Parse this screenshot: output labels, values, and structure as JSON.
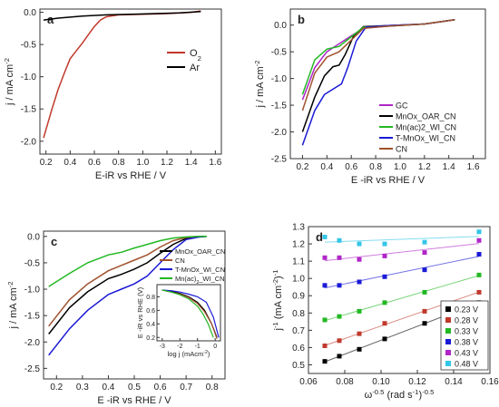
{
  "chart_data": [
    {
      "panel": "a",
      "type": "line",
      "xlabel": "E-iR vs RHE / V",
      "ylabel": "j / mA cm",
      "ylabel_sup": "-2",
      "xlim": [
        0.15,
        1.65
      ],
      "ylim": [
        -2.2,
        0.05
      ],
      "xticks": [
        "0.2",
        "0.4",
        "0.6",
        "0.8",
        "1.0",
        "1.2",
        "1.4",
        "1.6"
      ],
      "yticks": [
        "0.0",
        "-0.5",
        "-1.0",
        "-1.5",
        "-2.0"
      ],
      "legend": [
        {
          "label": "O",
          "sub": "2",
          "color": "#c0392b"
        },
        {
          "label": "Ar",
          "color": "#000000"
        }
      ],
      "series": [
        {
          "name": "O2",
          "color": "#c0392b",
          "x": [
            0.18,
            0.25,
            0.3,
            0.35,
            0.4,
            0.45,
            0.5,
            0.55,
            0.6,
            0.65,
            0.7,
            0.8,
            1.0,
            1.2,
            1.4,
            1.48
          ],
          "y": [
            -1.95,
            -1.5,
            -1.2,
            -0.95,
            -0.72,
            -0.6,
            -0.48,
            -0.35,
            -0.22,
            -0.12,
            -0.07,
            -0.04,
            -0.03,
            -0.02,
            0.0,
            0.02
          ]
        },
        {
          "name": "Ar",
          "color": "#000000",
          "x": [
            0.18,
            0.3,
            0.5,
            0.7,
            0.9,
            1.1,
            1.3,
            1.48
          ],
          "y": [
            -0.12,
            -0.09,
            -0.06,
            -0.04,
            -0.03,
            -0.02,
            -0.01,
            0.01
          ]
        }
      ]
    },
    {
      "panel": "b",
      "type": "line",
      "xlabel": "E -iR vs RHE / V",
      "ylabel": "j / mA cm",
      "ylabel_sup": "-2",
      "xlim": [
        0.1,
        1.7
      ],
      "ylim": [
        -2.5,
        0.3
      ],
      "xticks": [
        "0.2",
        "0.4",
        "0.6",
        "0.8",
        "1.0",
        "1.2",
        "1.4",
        "1.6"
      ],
      "yticks": [
        "0.0",
        "-0.5",
        "-1.0",
        "-1.5",
        "-2.0",
        "-2.5"
      ],
      "legend": [
        {
          "label": "GC",
          "color": "#b026c8"
        },
        {
          "label": "MnOx_OAR_CN",
          "color": "#000000"
        },
        {
          "label": "Mn(ac)2_WI_CN",
          "color": "#22b822"
        },
        {
          "label": "T-MnOx_WI_CN",
          "color": "#1a1ad6"
        },
        {
          "label": "CN",
          "color": "#a0522d"
        }
      ],
      "series": [
        {
          "name": "GC",
          "color": "#b026c8",
          "x": [
            0.2,
            0.3,
            0.4,
            0.5,
            0.6,
            0.7,
            0.9,
            1.2,
            1.45
          ],
          "y": [
            -1.4,
            -0.8,
            -0.5,
            -0.35,
            -0.2,
            -0.06,
            -0.02,
            0.02,
            0.1
          ]
        },
        {
          "name": "MnOx_OAR_CN",
          "color": "#000000",
          "x": [
            0.2,
            0.3,
            0.38,
            0.45,
            0.5,
            0.55,
            0.62,
            0.7,
            0.9,
            1.2,
            1.45
          ],
          "y": [
            -2.0,
            -1.35,
            -0.95,
            -0.78,
            -0.75,
            -0.55,
            -0.2,
            -0.03,
            -0.01,
            0.02,
            0.1
          ]
        },
        {
          "name": "Mn(ac)2_WI_CN",
          "color": "#22b822",
          "x": [
            0.2,
            0.3,
            0.4,
            0.5,
            0.6,
            0.7,
            0.9,
            1.2,
            1.45
          ],
          "y": [
            -1.3,
            -0.65,
            -0.45,
            -0.4,
            -0.22,
            -0.04,
            -0.02,
            0.02,
            0.1
          ]
        },
        {
          "name": "T-MnOx_WI_CN",
          "color": "#1a1ad6",
          "x": [
            0.2,
            0.3,
            0.38,
            0.45,
            0.52,
            0.57,
            0.64,
            0.72,
            0.9,
            1.2,
            1.45
          ],
          "y": [
            -2.25,
            -1.6,
            -1.3,
            -1.2,
            -1.1,
            -0.8,
            -0.3,
            -0.04,
            -0.01,
            0.02,
            0.1
          ]
        },
        {
          "name": "CN",
          "color": "#a0522d",
          "x": [
            0.2,
            0.3,
            0.4,
            0.5,
            0.6,
            0.7,
            0.9,
            1.2,
            1.45
          ],
          "y": [
            -1.6,
            -0.9,
            -0.6,
            -0.5,
            -0.28,
            -0.06,
            -0.02,
            0.02,
            0.1
          ]
        }
      ]
    },
    {
      "panel": "c",
      "type": "line",
      "xlabel": "E -iR vs RHE / V",
      "ylabel": "j / mA cm",
      "ylabel_sup": "-2",
      "xlim": [
        0.15,
        0.85
      ],
      "ylim": [
        -2.7,
        0.1
      ],
      "xticks": [
        "0.2",
        "0.3",
        "0.4",
        "0.5",
        "0.6",
        "0.7",
        "0.8"
      ],
      "yticks": [
        "0.0",
        "-0.5",
        "-1.0",
        "-1.5",
        "-2.0",
        "-2.5"
      ],
      "legend": [
        {
          "label": "MnOx_OAR_CN",
          "color": "#000000"
        },
        {
          "label": "CN",
          "color": "#a0522d"
        },
        {
          "label": "T-MnOx_WI_CN",
          "color": "#1a1ad6"
        },
        {
          "label": "Mn(ac)",
          "sub": "2",
          "tail": "_WI_CN",
          "color": "#22b822"
        }
      ],
      "series": [
        {
          "name": "MnOx_OAR_CN",
          "color": "#000000",
          "x": [
            0.17,
            0.25,
            0.32,
            0.4,
            0.45,
            0.5,
            0.55,
            0.6,
            0.65,
            0.7,
            0.75,
            0.78
          ],
          "y": [
            -1.85,
            -1.35,
            -1.05,
            -0.8,
            -0.72,
            -0.62,
            -0.5,
            -0.32,
            -0.15,
            -0.04,
            -0.01,
            0.0
          ]
        },
        {
          "name": "CN",
          "color": "#a0522d",
          "x": [
            0.17,
            0.25,
            0.32,
            0.4,
            0.45,
            0.5,
            0.55,
            0.6,
            0.65,
            0.7,
            0.75,
            0.78
          ],
          "y": [
            -1.7,
            -1.2,
            -0.9,
            -0.65,
            -0.55,
            -0.45,
            -0.35,
            -0.2,
            -0.08,
            -0.02,
            0.0,
            0.0
          ]
        },
        {
          "name": "T-MnOx_WI_CN",
          "color": "#1a1ad6",
          "x": [
            0.17,
            0.25,
            0.32,
            0.4,
            0.45,
            0.5,
            0.55,
            0.6,
            0.65,
            0.7,
            0.75,
            0.78
          ],
          "y": [
            -2.25,
            -1.75,
            -1.4,
            -1.1,
            -1.0,
            -0.9,
            -0.75,
            -0.5,
            -0.25,
            -0.06,
            -0.01,
            0.0
          ]
        },
        {
          "name": "Mn(ac)2_WI_CN",
          "color": "#22b822",
          "x": [
            0.17,
            0.25,
            0.32,
            0.4,
            0.45,
            0.5,
            0.55,
            0.6,
            0.65,
            0.7,
            0.75,
            0.78
          ],
          "y": [
            -0.95,
            -0.7,
            -0.5,
            -0.35,
            -0.3,
            -0.22,
            -0.15,
            -0.08,
            -0.03,
            -0.01,
            0.0,
            0.0
          ]
        }
      ],
      "inset": {
        "xlabel": "log j  (mAcm",
        "xlabel_sup": "-2",
        "xlabel_tail": ")",
        "ylabel": "E -iR vs RHE (V)",
        "xlim": [
          -3.3,
          0.3
        ],
        "ylim": [
          0.15,
          0.98
        ],
        "xticks": [
          "-3",
          "-2",
          "-1",
          "0"
        ],
        "yticks": [
          "0.8",
          "0.6",
          "0.4",
          "0.2"
        ],
        "series": [
          {
            "name": "MnOx_OAR_CN",
            "color": "#000000",
            "x": [
              -3.0,
              -2.5,
              -2.0,
              -1.5,
              -1.0,
              -0.6,
              -0.2,
              0.1
            ],
            "y": [
              0.9,
              0.88,
              0.85,
              0.8,
              0.72,
              0.6,
              0.4,
              0.2
            ]
          },
          {
            "name": "CN",
            "color": "#a0522d",
            "x": [
              -3.0,
              -2.5,
              -2.0,
              -1.5,
              -1.0,
              -0.6,
              -0.2,
              0.1
            ],
            "y": [
              0.9,
              0.87,
              0.84,
              0.79,
              0.7,
              0.58,
              0.4,
              0.18
            ]
          },
          {
            "name": "T-MnOx_WI_CN",
            "color": "#1a1ad6",
            "x": [
              -3.0,
              -2.5,
              -2.0,
              -1.5,
              -1.0,
              -0.5,
              -0.1,
              0.2
            ],
            "y": [
              0.9,
              0.89,
              0.87,
              0.84,
              0.8,
              0.72,
              0.5,
              0.2
            ]
          },
          {
            "name": "Mn(ac)2_WI_CN",
            "color": "#22b822",
            "x": [
              -3.0,
              -2.5,
              -2.0,
              -1.5,
              -1.0,
              -0.7,
              -0.4,
              -0.1
            ],
            "y": [
              0.9,
              0.87,
              0.83,
              0.77,
              0.66,
              0.55,
              0.4,
              0.2
            ]
          }
        ]
      }
    },
    {
      "panel": "d",
      "type": "scatter",
      "xlabel": "ω",
      "xlabel_sup": "-0.5",
      "xlabel_tail": " (rad s",
      "xlabel_sup2": "-1",
      "xlabel_tail2": ")",
      "xlabel_sup3": "-0.5",
      "ylabel": "j",
      "ylabel_sup": "-1",
      "ylabel_tail": " (mA cm",
      "ylabel_sup2": "-2",
      "ylabel_tail2": ")",
      "ylabel_sup3": "-1",
      "xlim": [
        0.06,
        0.16
      ],
      "ylim": [
        0.45,
        1.3
      ],
      "xticks": [
        "0.06",
        "0.08",
        "0.10",
        "0.12",
        "0.14",
        "0.16"
      ],
      "yticks": [
        "0.5",
        "0.6",
        "0.7",
        "0.8",
        "0.9",
        "1.0",
        "1.1",
        "1.2",
        "1.3"
      ],
      "x": [
        0.069,
        0.077,
        0.088,
        0.102,
        0.124,
        0.154
      ],
      "series": [
        {
          "name": "0.23 V",
          "color": "#000000",
          "values": [
            0.52,
            0.55,
            0.59,
            0.65,
            0.74,
            0.86
          ]
        },
        {
          "name": "0.28 V",
          "color": "#c0392b",
          "values": [
            0.61,
            0.64,
            0.68,
            0.74,
            0.81,
            0.92
          ]
        },
        {
          "name": "0.33 V",
          "color": "#22b822",
          "values": [
            0.76,
            0.78,
            0.81,
            0.86,
            0.92,
            1.02
          ]
        },
        {
          "name": "0.38 V",
          "color": "#1a1ad6",
          "values": [
            0.96,
            0.96,
            0.98,
            1.01,
            1.05,
            1.14
          ]
        },
        {
          "name": "0.43 V",
          "color": "#b026c8",
          "values": [
            1.12,
            1.12,
            1.11,
            1.13,
            1.15,
            1.22
          ]
        },
        {
          "name": "0.48 V",
          "color": "#33c6e8",
          "values": [
            1.24,
            1.22,
            1.2,
            1.2,
            1.21,
            1.27
          ]
        }
      ]
    }
  ],
  "labels": {
    "a": "a",
    "b": "b",
    "c": "c",
    "d": "d"
  }
}
